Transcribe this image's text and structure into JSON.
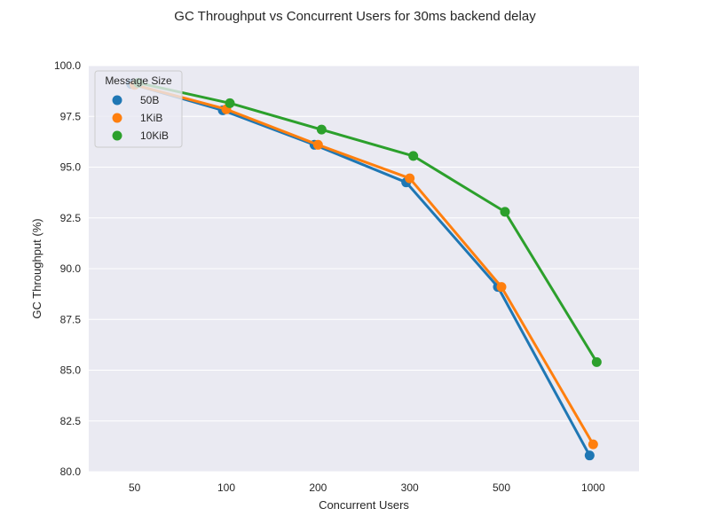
{
  "chart_data": {
    "type": "line",
    "title": "GC Throughput vs Concurrent Users for 30ms backend delay",
    "xlabel": "Concurrent Users",
    "ylabel": "GC Throughput (%)",
    "categories": [
      "50",
      "100",
      "200",
      "300",
      "500",
      "1000"
    ],
    "ylim": [
      80.0,
      100.0
    ],
    "yticks": [
      "80.0",
      "82.5",
      "85.0",
      "87.5",
      "90.0",
      "92.5",
      "95.0",
      "97.5",
      "100.0"
    ],
    "grid": true,
    "legend": {
      "title": "Message Size",
      "placement": "top-left"
    },
    "series": [
      {
        "name": "50B",
        "color": "#1f77b4",
        "values": [
          99.1,
          97.8,
          96.1,
          94.25,
          89.1,
          80.8
        ]
      },
      {
        "name": "1KiB",
        "color": "#ff7f0e",
        "values": [
          99.05,
          97.85,
          96.1,
          94.45,
          89.1,
          81.35
        ]
      },
      {
        "name": "10KiB",
        "color": "#2ca02c",
        "values": [
          99.15,
          98.15,
          96.85,
          95.55,
          92.8,
          85.4
        ]
      }
    ]
  }
}
